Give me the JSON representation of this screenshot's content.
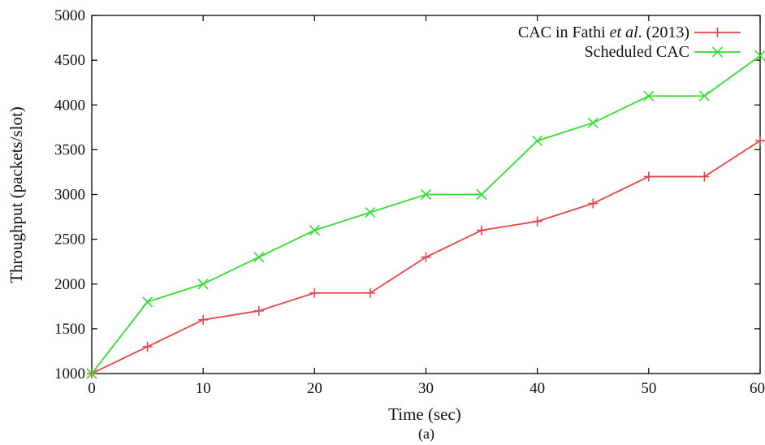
{
  "chart_data": {
    "type": "line",
    "xlabel": "Time (sec)",
    "ylabel": "Throughput (packets/slot)",
    "caption": "(a)",
    "xlim": [
      0,
      60
    ],
    "ylim": [
      1000,
      5000
    ],
    "x_ticks": [
      "0",
      "10",
      "20",
      "30",
      "40",
      "50",
      "60"
    ],
    "y_ticks": [
      "1000",
      "1500",
      "2000",
      "2500",
      "3000",
      "3500",
      "4000",
      "4500",
      "5000"
    ],
    "grid": false,
    "legend_position": "top-right",
    "x": [
      0,
      5,
      10,
      15,
      20,
      25,
      30,
      35,
      40,
      45,
      50,
      55,
      60
    ],
    "series": [
      {
        "name": "CAC in Fathi et al. (2013)",
        "legend_parts": {
          "pre": "CAC in Fathi ",
          "italic": "et al",
          "post": ".  (2013)"
        },
        "color": "#e8434a",
        "marker": "plus",
        "values": [
          1000,
          1300,
          1600,
          1700,
          1900,
          1900,
          2300,
          2600,
          2700,
          2900,
          3200,
          3200,
          3600
        ]
      },
      {
        "name": "Scheduled CAC",
        "legend_parts": {
          "pre": "Scheduled CAC",
          "italic": "",
          "post": ""
        },
        "color": "#33dd33",
        "marker": "cross",
        "values": [
          1000,
          1800,
          2000,
          2300,
          2600,
          2800,
          3000,
          3000,
          3600,
          3800,
          4100,
          4100,
          4550
        ]
      }
    ]
  }
}
